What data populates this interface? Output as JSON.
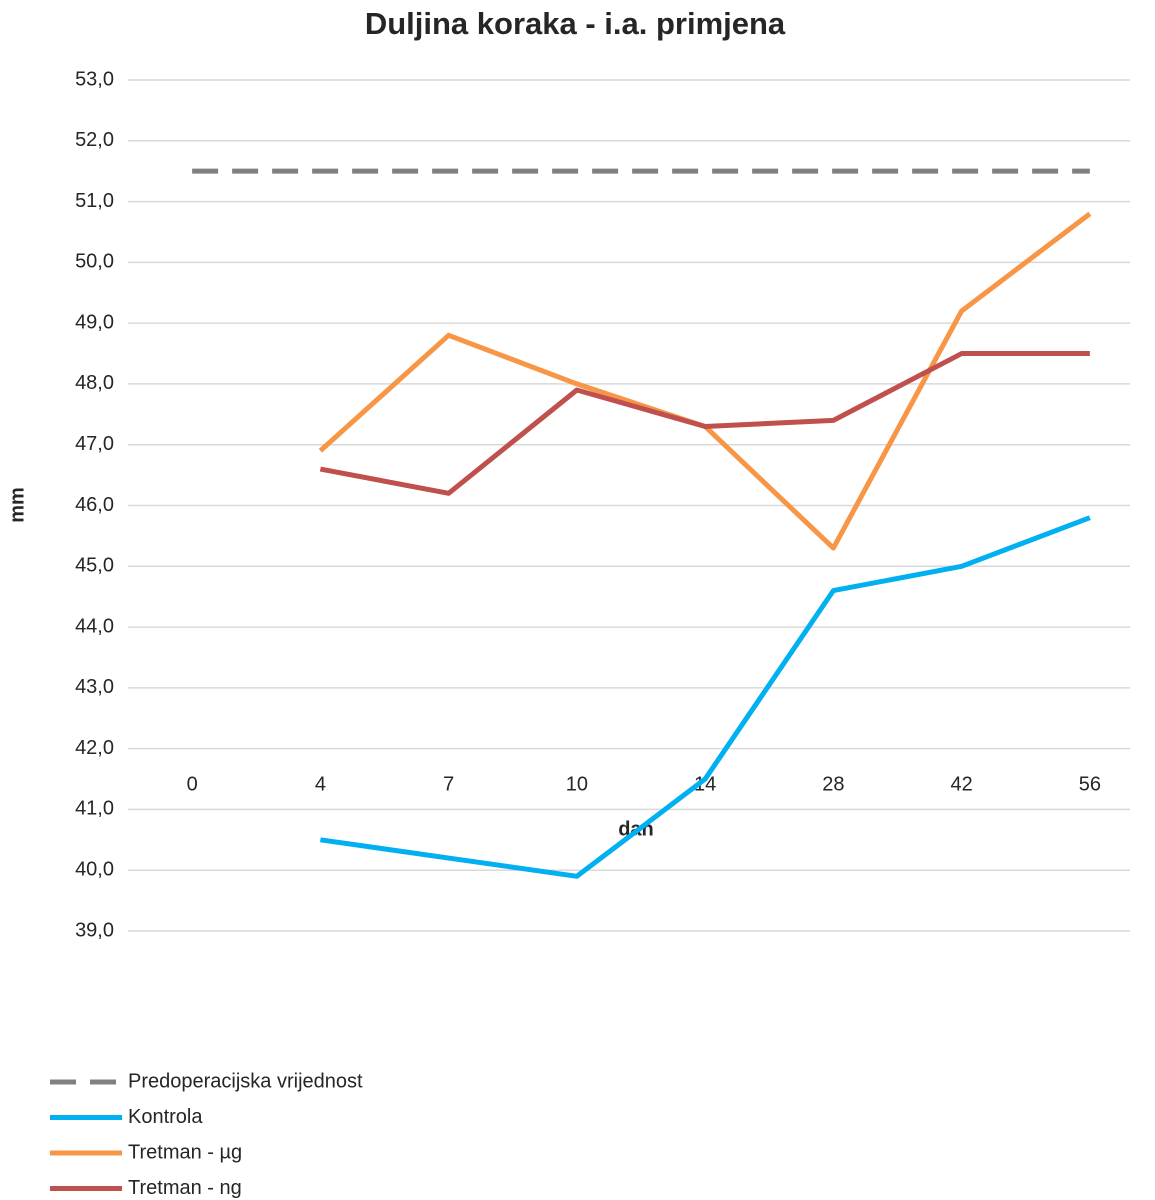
{
  "chart_data": {
    "type": "line",
    "title": "Duljina koraka - i.a. primjena",
    "x_label": "dan",
    "y_label": "mm",
    "categories": [
      "0",
      "4",
      "7",
      "10",
      "14",
      "28",
      "42",
      "56"
    ],
    "series": [
      {
        "name": "Predoperacijska vrijednost",
        "color": "#808080",
        "dashed": true,
        "values": [
          51.5,
          51.5,
          51.5,
          51.5,
          51.5,
          51.5,
          51.5,
          51.5
        ]
      },
      {
        "name": "Kontrola",
        "color": "#00b0f0",
        "values": [
          null,
          40.5,
          40.2,
          39.9,
          41.5,
          44.6,
          45.0,
          45.8
        ]
      },
      {
        "name": "Tretman - µg",
        "color": "#f79646",
        "values": [
          null,
          46.9,
          48.8,
          48.0,
          47.3,
          45.3,
          49.2,
          50.8
        ]
      },
      {
        "name": "Tretman - ng",
        "color": "#c0504d",
        "values": [
          null,
          46.6,
          46.2,
          47.9,
          47.3,
          47.4,
          48.5,
          48.5
        ]
      }
    ],
    "ylim": [
      39,
      53
    ],
    "yticks": [
      {
        "value": 39,
        "label": "39,0"
      },
      {
        "value": 40,
        "label": "40,0"
      },
      {
        "value": 41,
        "label": "41,0"
      },
      {
        "value": 42,
        "label": "42,0"
      },
      {
        "value": 43,
        "label": "43,0"
      },
      {
        "value": 44,
        "label": "44,0"
      },
      {
        "value": 45,
        "label": "45,0"
      },
      {
        "value": 46,
        "label": "46,0"
      },
      {
        "value": 47,
        "label": "47,0"
      },
      {
        "value": 48,
        "label": "48,0"
      },
      {
        "value": 49,
        "label": "49,0"
      },
      {
        "value": 50,
        "label": "50,0"
      },
      {
        "value": 51,
        "label": "51,0"
      },
      {
        "value": 52,
        "label": "52,0"
      },
      {
        "value": 53,
        "label": "53,0"
      }
    ],
    "grid": true,
    "legend": "bottom-left"
  }
}
